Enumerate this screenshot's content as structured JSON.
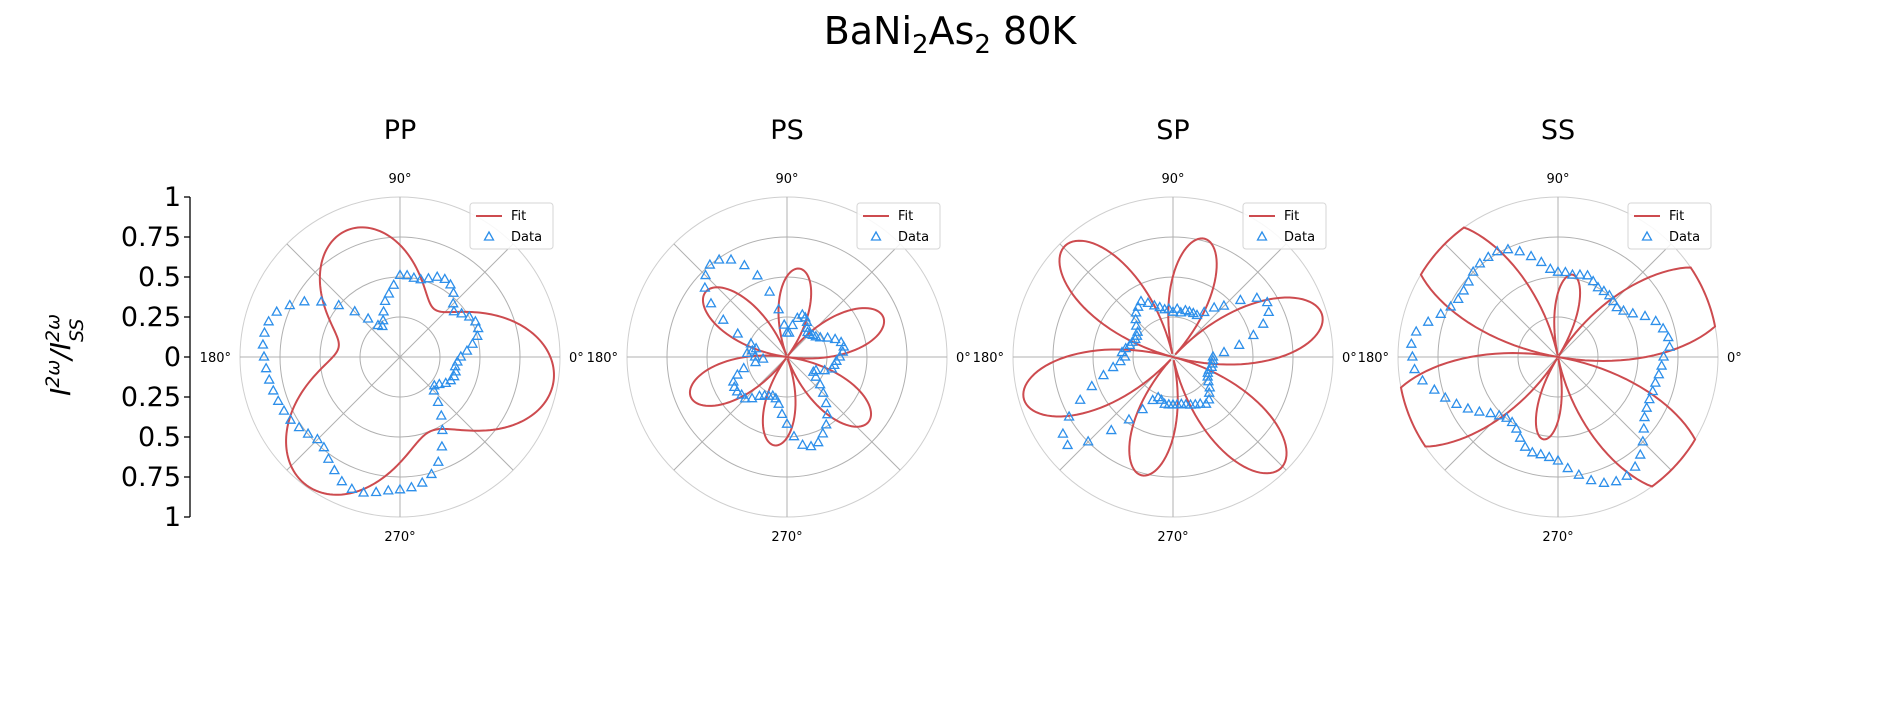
{
  "title_main": "BaNi",
  "title_sub1": "2",
  "title_mid": "As",
  "title_sub2": "2",
  "title_tail": " 80K",
  "ylabel_base1": "I",
  "ylabel_sup1": "2ω",
  "ylabel_slash": "/",
  "ylabel_base2": "I",
  "ylabel_sup2": "2ω",
  "ylabel_sub2": "SS",
  "left_axis_ticks": [
    "1",
    "0.75",
    "0.5",
    "0.25",
    "0",
    "0.25",
    "0.5",
    "0.75",
    "1"
  ],
  "angle_labels": {
    "a0": "0°",
    "a90": "90°",
    "a180": "180°",
    "a270": "270°"
  },
  "colors": {
    "fit": "#cd4b4f",
    "data": "#2d8fea",
    "grid": "#b0b0b0"
  },
  "chart_data": [
    {
      "type": "polar",
      "title": "PP",
      "rlim": [
        0,
        1
      ],
      "rgrid": [
        0.25,
        0.5,
        0.75,
        1
      ],
      "legend": {
        "position": "top-right",
        "entries": [
          "Fit",
          "Data"
        ]
      },
      "fit_model": {
        "constant": 0.68,
        "cos3": 0.24,
        "sin3": -0.1,
        "cos1": 0.02,
        "sin1": -0.08
      },
      "data": {
        "angles": [
          0,
          5,
          10,
          15,
          20,
          25,
          30,
          35,
          40,
          45,
          50,
          55,
          60,
          65,
          70,
          75,
          80,
          85,
          90,
          95,
          100,
          105,
          110,
          115,
          120,
          125,
          130,
          135,
          140,
          145,
          150,
          155,
          160,
          165,
          170,
          175,
          180,
          185,
          190,
          195,
          200,
          205,
          210,
          215,
          220,
          225,
          230,
          235,
          240,
          245,
          250,
          255,
          260,
          265,
          270,
          275,
          280,
          285,
          290,
          295,
          300,
          305,
          310,
          315,
          320,
          325,
          330,
          335,
          340,
          345,
          350,
          355
        ],
        "r": [
          0.38,
          0.42,
          0.46,
          0.5,
          0.52,
          0.52,
          0.5,
          0.47,
          0.44,
          0.47,
          0.52,
          0.55,
          0.56,
          0.55,
          0.52,
          0.5,
          0.5,
          0.51,
          0.51,
          0.45,
          0.4,
          0.36,
          0.3,
          0.25,
          0.22,
          0.24,
          0.31,
          0.4,
          0.5,
          0.6,
          0.69,
          0.76,
          0.82,
          0.85,
          0.86,
          0.86,
          0.85,
          0.84,
          0.83,
          0.82,
          0.81,
          0.8,
          0.79,
          0.77,
          0.75,
          0.73,
          0.74,
          0.78,
          0.82,
          0.86,
          0.88,
          0.88,
          0.86,
          0.84,
          0.83,
          0.82,
          0.8,
          0.76,
          0.7,
          0.62,
          0.53,
          0.45,
          0.37,
          0.3,
          0.28,
          0.3,
          0.33,
          0.35,
          0.36,
          0.36,
          0.35,
          0.36
        ]
      }
    },
    {
      "type": "polar",
      "title": "PS",
      "rlim": [
        0,
        1
      ],
      "rgrid": [
        0.25,
        0.5,
        0.75,
        1
      ],
      "legend": {
        "position": "top-right",
        "entries": [
          "Fit",
          "Data"
        ]
      },
      "fit_model": {
        "amplitude": 0.62,
        "s3": 1.0,
        "s1": 0.1,
        "offset_deg": -8
      },
      "data": {
        "angles": [
          0,
          5,
          10,
          15,
          20,
          25,
          30,
          35,
          40,
          45,
          50,
          55,
          60,
          65,
          70,
          75,
          80,
          85,
          90,
          95,
          100,
          105,
          110,
          115,
          120,
          125,
          130,
          135,
          140,
          145,
          150,
          155,
          160,
          165,
          170,
          175,
          180,
          185,
          190,
          195,
          200,
          205,
          210,
          215,
          220,
          225,
          230,
          235,
          240,
          245,
          250,
          255,
          260,
          265,
          270,
          275,
          280,
          285,
          290,
          295,
          300,
          305,
          310,
          315,
          320,
          325,
          330,
          335,
          340,
          345,
          350,
          355
        ],
        "r": [
          0.33,
          0.35,
          0.36,
          0.35,
          0.32,
          0.28,
          0.24,
          0.22,
          0.21,
          0.2,
          0.2,
          0.22,
          0.25,
          0.27,
          0.28,
          0.25,
          0.2,
          0.15,
          0.15,
          0.2,
          0.3,
          0.42,
          0.54,
          0.63,
          0.7,
          0.74,
          0.75,
          0.72,
          0.67,
          0.58,
          0.46,
          0.34,
          0.24,
          0.2,
          0.22,
          0.25,
          0.2,
          0.15,
          0.2,
          0.28,
          0.33,
          0.37,
          0.38,
          0.38,
          0.37,
          0.37,
          0.34,
          0.3,
          0.28,
          0.27,
          0.26,
          0.27,
          0.3,
          0.36,
          0.42,
          0.5,
          0.56,
          0.58,
          0.57,
          0.53,
          0.49,
          0.44,
          0.38,
          0.32,
          0.27,
          0.22,
          0.19,
          0.2,
          0.25,
          0.29,
          0.3,
          0.31
        ]
      }
    },
    {
      "type": "polar",
      "title": "SP",
      "rlim": [
        0,
        1
      ],
      "rgrid": [
        0.25,
        0.5,
        0.75,
        1
      ],
      "legend": {
        "position": "top-right",
        "entries": [
          "Fit",
          "Data"
        ]
      },
      "fit_model": {
        "amplitude": 0.9,
        "s3": 1.0,
        "s1": 0.15,
        "offset_deg": -15
      },
      "data": {
        "angles": [
          0,
          5,
          10,
          15,
          20,
          25,
          30,
          35,
          40,
          45,
          50,
          55,
          60,
          65,
          70,
          75,
          80,
          85,
          90,
          95,
          100,
          105,
          110,
          115,
          120,
          125,
          130,
          135,
          140,
          145,
          150,
          155,
          160,
          165,
          170,
          175,
          180,
          185,
          190,
          195,
          200,
          205,
          210,
          215,
          220,
          225,
          230,
          235,
          240,
          245,
          250,
          255,
          260,
          265,
          270,
          275,
          280,
          285,
          290,
          295,
          300,
          305,
          310,
          315,
          320,
          325,
          330,
          335,
          340,
          345,
          350,
          355
        ],
        "r": [
          0.25,
          0.32,
          0.42,
          0.52,
          0.6,
          0.66,
          0.68,
          0.64,
          0.55,
          0.45,
          0.4,
          0.34,
          0.3,
          0.3,
          0.3,
          0.3,
          0.28,
          0.3,
          0.28,
          0.3,
          0.3,
          0.32,
          0.34,
          0.37,
          0.4,
          0.38,
          0.36,
          0.33,
          0.3,
          0.27,
          0.26,
          0.26,
          0.27,
          0.28,
          0.3,
          0.32,
          0.3,
          0.33,
          0.38,
          0.45,
          0.54,
          0.64,
          0.75,
          0.84,
          0.86,
          0.75,
          0.6,
          0.48,
          0.38,
          0.3,
          0.27,
          0.28,
          0.3,
          0.3,
          0.3,
          0.3,
          0.3,
          0.31,
          0.32,
          0.33,
          0.34,
          0.36,
          0.35,
          0.32,
          0.3,
          0.27,
          0.25,
          0.24,
          0.24,
          0.25,
          0.25,
          0.25
        ]
      }
    },
    {
      "type": "polar",
      "title": "SS",
      "rlim": [
        0,
        1
      ],
      "rgrid": [
        0.25,
        0.5,
        0.75,
        1
      ],
      "legend": {
        "position": "top-right",
        "entries": [
          "Fit",
          "Data"
        ]
      },
      "fit_model": {
        "amplitude": 0.95,
        "s3": 1.0,
        "s1": 0.45,
        "offset_deg": 170
      },
      "data": {
        "angles": [
          0,
          5,
          10,
          15,
          20,
          25,
          30,
          35,
          40,
          45,
          50,
          55,
          60,
          65,
          70,
          75,
          80,
          85,
          90,
          95,
          100,
          105,
          110,
          115,
          120,
          125,
          130,
          135,
          140,
          145,
          150,
          155,
          160,
          165,
          170,
          175,
          180,
          185,
          190,
          195,
          200,
          205,
          210,
          215,
          220,
          225,
          230,
          235,
          240,
          245,
          250,
          255,
          260,
          265,
          270,
          275,
          280,
          285,
          290,
          295,
          300,
          305,
          310,
          315,
          320,
          325,
          330,
          335,
          340,
          345,
          350,
          355
        ],
        "r": [
          0.66,
          0.7,
          0.7,
          0.68,
          0.65,
          0.6,
          0.54,
          0.5,
          0.48,
          0.49,
          0.5,
          0.5,
          0.5,
          0.52,
          0.54,
          0.53,
          0.52,
          0.53,
          0.53,
          0.55,
          0.6,
          0.65,
          0.7,
          0.74,
          0.76,
          0.76,
          0.76,
          0.75,
          0.73,
          0.72,
          0.72,
          0.74,
          0.78,
          0.84,
          0.9,
          0.92,
          0.91,
          0.9,
          0.86,
          0.8,
          0.75,
          0.7,
          0.65,
          0.6,
          0.55,
          0.52,
          0.5,
          0.5,
          0.52,
          0.56,
          0.6,
          0.62,
          0.62,
          0.63,
          0.65,
          0.7,
          0.75,
          0.8,
          0.84,
          0.86,
          0.86,
          0.84,
          0.8,
          0.75,
          0.7,
          0.66,
          0.64,
          0.63,
          0.63,
          0.63,
          0.64,
          0.65
        ]
      }
    }
  ]
}
